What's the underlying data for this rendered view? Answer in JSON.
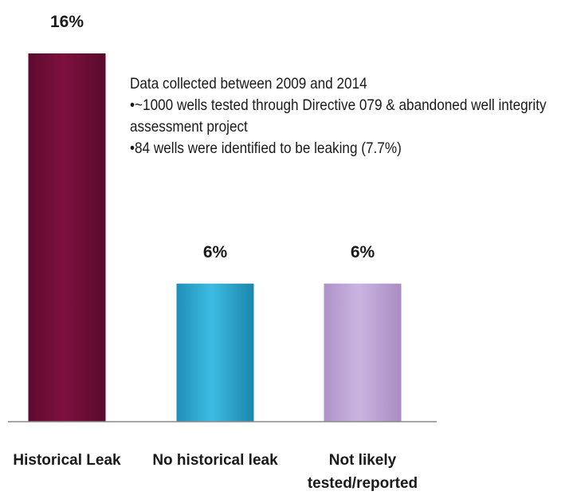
{
  "chart_data": {
    "type": "bar",
    "categories": [
      "Historical Leak",
      "No historical leak",
      "Not likely tested/reported"
    ],
    "category_lines": [
      [
        "Historical Leak"
      ],
      [
        "No historical leak"
      ],
      [
        "Not likely",
        "tested/reported"
      ]
    ],
    "values": [
      16,
      6,
      6
    ],
    "data_labels": [
      "16%",
      "6%",
      "6%"
    ],
    "colors": [
      "#7a0e3c",
      "#33aed6",
      "#c3a8d9"
    ],
    "title": "",
    "xlabel": "",
    "ylabel": "",
    "ylim": [
      0,
      16
    ],
    "grid": false,
    "legend": "none"
  },
  "annotation": {
    "line1": "Data collected between 2009 and 2014",
    "line2": "•~1000 wells tested through Directive 079 & abandoned well integrity assessment project",
    "line3": "•84 wells were identified to be leaking (7.7%)"
  }
}
